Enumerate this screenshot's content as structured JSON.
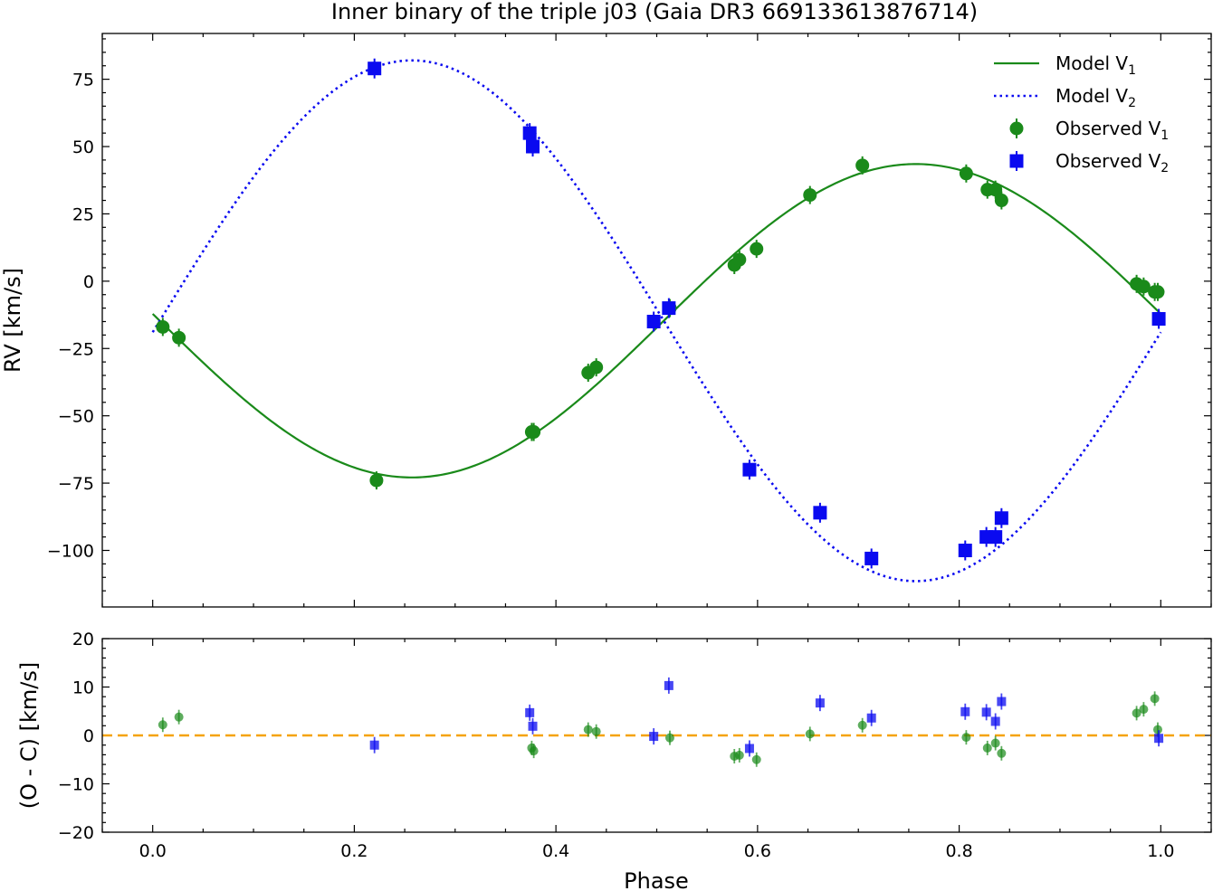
{
  "title": "Inner binary of the triple j03 (Gaia DR3 669133613876714)",
  "colors": {
    "v1": "#1a8a1a",
    "v2": "#0a0af0",
    "zero_line": "#f5a30a"
  },
  "legend": {
    "placement": "top-right",
    "entries": [
      {
        "label": "Model V",
        "sub": "1",
        "style": "solid-line",
        "series": "v1"
      },
      {
        "label": "Model V",
        "sub": "2",
        "style": "dotted-line",
        "series": "v2"
      },
      {
        "label": "Observed V",
        "sub": "1",
        "style": "circle",
        "series": "v1"
      },
      {
        "label": "Observed V",
        "sub": "2",
        "style": "square",
        "series": "v2"
      }
    ]
  },
  "chart_data": [
    {
      "type": "scatter",
      "panel": "main",
      "xlabel": "",
      "ylabel": "RV [km/s]",
      "xlim": [
        -0.05,
        1.05
      ],
      "ylim": [
        -121,
        92
      ],
      "xticks": [
        0.0,
        0.2,
        0.4,
        0.6,
        0.8,
        1.0
      ],
      "yticks": [
        75,
        50,
        25,
        0,
        -25,
        -50,
        -75,
        -100
      ],
      "ytick_labels": [
        "75",
        "50",
        "25",
        "0",
        "−25",
        "−50",
        "−75",
        "−100"
      ],
      "grid": false,
      "model": {
        "gamma": -14.7,
        "k1": 58.2,
        "k2": 96.7,
        "phase_v1_max": 0.757
      },
      "observed_v1": {
        "x": [
          0.01,
          0.026,
          0.222,
          0.376,
          0.378,
          0.432,
          0.44,
          0.513,
          0.577,
          0.582,
          0.599,
          0.652,
          0.704,
          0.807,
          0.828,
          0.836,
          0.842,
          0.976,
          0.983,
          0.994,
          0.997
        ],
        "y": [
          -17,
          -21,
          -74,
          -56,
          -56,
          -34,
          -32,
          -10,
          6,
          8,
          12,
          32,
          43,
          40,
          34,
          34,
          30,
          -1,
          -2,
          -4,
          -4
        ]
      },
      "observed_v2": {
        "x": [
          0.22,
          0.374,
          0.377,
          0.497,
          0.512,
          0.592,
          0.662,
          0.713,
          0.806,
          0.827,
          0.836,
          0.842,
          0.998
        ],
        "y": [
          79,
          55,
          50,
          -15,
          -10,
          -70,
          -86,
          -103,
          -100,
          -95,
          -95,
          -88,
          -14
        ]
      }
    },
    {
      "type": "scatter",
      "panel": "residuals",
      "xlabel": "Phase",
      "ylabel": "(O - C) [km/s]",
      "xlim": [
        -0.05,
        1.05
      ],
      "ylim": [
        -20,
        20
      ],
      "xticks": [
        0.0,
        0.2,
        0.4,
        0.6,
        0.8,
        1.0
      ],
      "xtick_labels": [
        "0.0",
        "0.2",
        "0.4",
        "0.6",
        "0.8",
        "1.0"
      ],
      "yticks": [
        20,
        10,
        0,
        -10,
        -20
      ],
      "ytick_labels": [
        "20",
        "10",
        "0",
        "−10",
        "−20"
      ],
      "zero_line": 0,
      "grid": false,
      "residual_v1": {
        "x": [
          0.01,
          0.026,
          0.376,
          0.378,
          0.432,
          0.44,
          0.513,
          0.577,
          0.582,
          0.599,
          0.652,
          0.704,
          0.807,
          0.828,
          0.836,
          0.842,
          0.976,
          0.983,
          0.994,
          0.997
        ],
        "y": [
          2.2,
          3.8,
          -2.6,
          -3.2,
          1.2,
          0.8,
          -0.5,
          -4.3,
          -4.1,
          -5.0,
          0.3,
          2.1,
          -0.4,
          -2.6,
          -1.6,
          -3.7,
          4.6,
          5.4,
          7.6,
          1.2
        ]
      },
      "residual_v2": {
        "x": [
          0.22,
          0.374,
          0.377,
          0.497,
          0.512,
          0.592,
          0.662,
          0.713,
          0.806,
          0.827,
          0.836,
          0.842,
          0.998
        ],
        "y": [
          -2.0,
          4.7,
          1.9,
          -0.2,
          10.3,
          -2.7,
          6.7,
          3.6,
          4.9,
          4.8,
          2.9,
          7.0,
          -0.6
        ]
      }
    }
  ]
}
